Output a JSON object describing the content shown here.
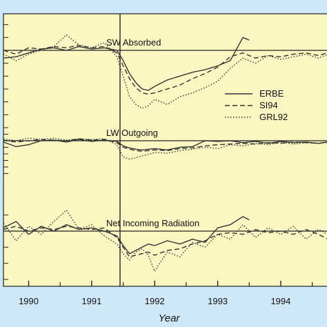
{
  "chart_data": {
    "type": "line",
    "xlabel": "Year",
    "xlim": [
      1989.6,
      1994.8
    ],
    "x_ticks": [
      "1990",
      "1991",
      "1992",
      "1993",
      "1994"
    ],
    "x_tick_values": [
      1990,
      1991,
      1992,
      1993,
      1994
    ],
    "event_line_x": 1991.45,
    "grid": false,
    "legend": {
      "placement": "right",
      "entries": [
        {
          "name": "ERBE",
          "style": "solid"
        },
        {
          "name": "SI94",
          "style": "dashed"
        },
        {
          "name": "GRL92",
          "style": "dotted"
        }
      ]
    },
    "colors": {
      "panel_background": "#fbf6c2",
      "page_background": "#cfe8f8",
      "lines": "#333333"
    },
    "panels": [
      {
        "title": "SW Absorbed",
        "ylim": [
          -6,
          2
        ],
        "zero_line": 0,
        "series": [
          {
            "name": "ERBE",
            "x": [
              1989.6,
              1989.8,
              1990.0,
              1990.2,
              1990.4,
              1990.6,
              1990.8,
              1991.0,
              1991.2,
              1991.4,
              1991.5,
              1991.6,
              1991.7,
              1991.8,
              1991.9,
              1992.0,
              1992.2,
              1992.4,
              1992.6,
              1992.8,
              1993.0,
              1993.2,
              1993.4,
              1993.5
            ],
            "y": [
              -0.6,
              -0.5,
              -0.2,
              0.1,
              0.2,
              0.0,
              0.3,
              0.1,
              0.2,
              0.0,
              -0.8,
              -1.8,
              -2.5,
              -3.0,
              -3.1,
              -2.8,
              -2.3,
              -2.0,
              -1.7,
              -1.5,
              -1.2,
              -0.8,
              1.0,
              0.8
            ]
          },
          {
            "name": "SI94",
            "x": [
              1989.6,
              1989.8,
              1990.0,
              1990.2,
              1990.4,
              1990.6,
              1990.8,
              1991.0,
              1991.2,
              1991.4,
              1991.5,
              1991.6,
              1991.7,
              1991.8,
              1991.9,
              1992.0,
              1992.2,
              1992.4,
              1992.6,
              1992.8,
              1993.0,
              1993.2,
              1993.4,
              1993.6,
              1993.8,
              1994.0,
              1994.2,
              1994.4,
              1994.6,
              1994.8
            ],
            "y": [
              0.0,
              -0.3,
              0.2,
              0.1,
              0.3,
              0.2,
              0.4,
              0.2,
              0.3,
              -0.2,
              -1.2,
              -2.2,
              -2.9,
              -3.3,
              -3.4,
              -3.3,
              -3.0,
              -2.7,
              -2.2,
              -1.8,
              -1.3,
              -0.5,
              -0.2,
              -0.6,
              -0.4,
              -0.5,
              -0.3,
              -0.2,
              -0.4,
              -0.1
            ]
          },
          {
            "name": "GRL92",
            "x": [
              1989.6,
              1989.8,
              1990.0,
              1990.2,
              1990.4,
              1990.6,
              1990.8,
              1991.0,
              1991.2,
              1991.4,
              1991.5,
              1991.6,
              1991.7,
              1991.8,
              1991.9,
              1992.0,
              1992.2,
              1992.4,
              1992.6,
              1992.8,
              1993.0,
              1993.2,
              1993.4,
              1993.6,
              1993.8,
              1994.0,
              1994.2,
              1994.4,
              1994.6,
              1994.8
            ],
            "y": [
              -0.3,
              -0.8,
              -0.3,
              0.0,
              0.3,
              1.2,
              0.4,
              0.2,
              0.6,
              -0.5,
              -2.0,
              -3.6,
              -4.2,
              -4.5,
              -4.3,
              -3.8,
              -4.2,
              -3.6,
              -3.3,
              -2.9,
              -2.4,
              -1.4,
              -0.6,
              -1.0,
              -0.4,
              -0.7,
              -0.5,
              -0.3,
              -0.6,
              -0.2
            ]
          }
        ]
      },
      {
        "title": "LW Outgoing",
        "ylim": [
          -5,
          2
        ],
        "zero_line": 0,
        "series": [
          {
            "name": "ERBE",
            "x": [
              1989.6,
              1989.8,
              1990.0,
              1990.2,
              1990.4,
              1990.6,
              1990.8,
              1991.0,
              1991.2,
              1991.4,
              1991.5,
              1991.6,
              1991.7,
              1991.8,
              1991.9,
              1992.0,
              1992.2,
              1992.4,
              1992.6,
              1992.8,
              1993.0,
              1993.2,
              1993.4,
              1993.6,
              1993.8,
              1994.0,
              1994.2,
              1994.4,
              1994.6,
              1994.8
            ],
            "y": [
              -0.2,
              -0.9,
              -0.6,
              0.0,
              0.1,
              -0.2,
              0.2,
              -0.1,
              0.1,
              -0.1,
              -0.8,
              -1.1,
              -1.3,
              -1.4,
              -1.3,
              -1.2,
              -1.4,
              -1.0,
              -0.9,
              0.0,
              -0.1,
              0.0,
              -0.3,
              -0.1,
              -0.4,
              -0.1,
              -0.3,
              -0.2,
              -0.4,
              -0.1
            ]
          },
          {
            "name": "SI94",
            "x": [
              1989.6,
              1989.8,
              1990.0,
              1990.2,
              1990.4,
              1990.6,
              1990.8,
              1991.0,
              1991.2,
              1991.4,
              1991.5,
              1991.6,
              1991.7,
              1991.8,
              1991.9,
              1992.0,
              1992.2,
              1992.4,
              1992.6,
              1992.8,
              1993.0,
              1993.2,
              1993.4,
              1993.6,
              1993.8,
              1994.0,
              1994.2,
              1994.4,
              1994.6,
              1994.8
            ],
            "y": [
              0.1,
              -0.2,
              0.0,
              0.2,
              0.1,
              0.0,
              0.3,
              0.1,
              0.2,
              -0.3,
              -1.0,
              -1.3,
              -1.5,
              -1.6,
              -1.5,
              -1.4,
              -1.5,
              -1.2,
              -1.1,
              -0.8,
              -0.6,
              -0.5,
              -0.4,
              -0.5,
              -0.3,
              -0.4,
              -0.2,
              -0.3,
              -0.4,
              -0.2
            ]
          },
          {
            "name": "GRL92",
            "x": [
              1989.6,
              1989.8,
              1990.0,
              1990.2,
              1990.4,
              1990.6,
              1990.8,
              1991.0,
              1991.2,
              1991.4,
              1991.5,
              1991.6,
              1991.7,
              1991.8,
              1991.9,
              1992.0,
              1992.2,
              1992.4,
              1992.6,
              1992.8,
              1993.0,
              1993.2,
              1993.4,
              1993.6,
              1993.8,
              1994.0,
              1994.2,
              1994.4,
              1994.6,
              1994.8
            ],
            "y": [
              0.3,
              0.0,
              0.4,
              0.2,
              0.4,
              0.1,
              0.3,
              0.2,
              0.3,
              -0.6,
              -2.5,
              -2.8,
              -2.6,
              -2.3,
              -2.1,
              -1.8,
              -1.9,
              -1.5,
              -1.3,
              -1.0,
              -1.2,
              -0.6,
              -0.8,
              -0.4,
              -0.6,
              -0.2,
              -0.5,
              -0.3,
              -0.4,
              -0.2
            ]
          }
        ]
      },
      {
        "title": "Net Incoming Radiation",
        "ylim": [
          -3,
          1.5
        ],
        "zero_line": 0,
        "series": [
          {
            "name": "ERBE",
            "x": [
              1989.6,
              1989.8,
              1990.0,
              1990.2,
              1990.4,
              1990.6,
              1990.8,
              1991.0,
              1991.2,
              1991.4,
              1991.5,
              1991.6,
              1991.7,
              1991.8,
              1991.9,
              1992.0,
              1992.2,
              1992.4,
              1992.6,
              1992.8,
              1993.0,
              1993.2,
              1993.4,
              1993.5
            ],
            "y": [
              0.2,
              0.6,
              -0.2,
              0.3,
              0.0,
              0.4,
              0.1,
              0.2,
              0.0,
              -0.3,
              -0.9,
              -1.4,
              -1.2,
              -1.0,
              -0.8,
              -0.9,
              -0.6,
              -0.8,
              -0.5,
              -0.7,
              0.2,
              0.4,
              0.9,
              0.7
            ]
          },
          {
            "name": "SI94",
            "x": [
              1989.6,
              1989.8,
              1990.0,
              1990.2,
              1990.4,
              1990.6,
              1990.8,
              1991.0,
              1991.2,
              1991.4,
              1991.5,
              1991.6,
              1991.7,
              1991.8,
              1991.9,
              1992.0,
              1992.2,
              1992.4,
              1992.6,
              1992.8,
              1993.0,
              1993.2,
              1993.4,
              1993.6,
              1993.8,
              1994.0,
              1994.2,
              1994.4,
              1994.6,
              1994.8
            ],
            "y": [
              0.1,
              0.3,
              0.0,
              0.2,
              0.1,
              0.3,
              0.2,
              0.1,
              0.2,
              -0.4,
              -1.0,
              -1.6,
              -1.5,
              -1.4,
              -1.3,
              -1.5,
              -1.2,
              -1.1,
              -0.8,
              -0.6,
              -0.2,
              -0.1,
              -0.2,
              0.1,
              -0.1,
              0.0,
              -0.2,
              0.1,
              -0.2,
              -0.6
            ]
          },
          {
            "name": "GRL92",
            "x": [
              1989.6,
              1989.8,
              1990.0,
              1990.2,
              1990.4,
              1990.6,
              1990.8,
              1991.0,
              1991.2,
              1991.4,
              1991.5,
              1991.6,
              1991.7,
              1991.8,
              1991.9,
              1992.0,
              1992.2,
              1992.4,
              1992.6,
              1992.8,
              1993.0,
              1993.2,
              1993.4,
              1993.6,
              1993.8,
              1994.0,
              1994.2,
              1994.4,
              1994.6,
              1994.8
            ],
            "y": [
              0.5,
              -0.6,
              0.3,
              -0.2,
              0.6,
              1.3,
              0.1,
              0.4,
              -0.3,
              -0.8,
              -1.4,
              -1.8,
              -1.3,
              -1.1,
              -1.5,
              -2.5,
              -1.3,
              -1.6,
              -0.7,
              -1.0,
              -0.2,
              -0.5,
              0.4,
              -0.4,
              0.2,
              -0.2,
              0.3,
              -0.5,
              0.1,
              -0.3
            ]
          }
        ]
      }
    ]
  }
}
